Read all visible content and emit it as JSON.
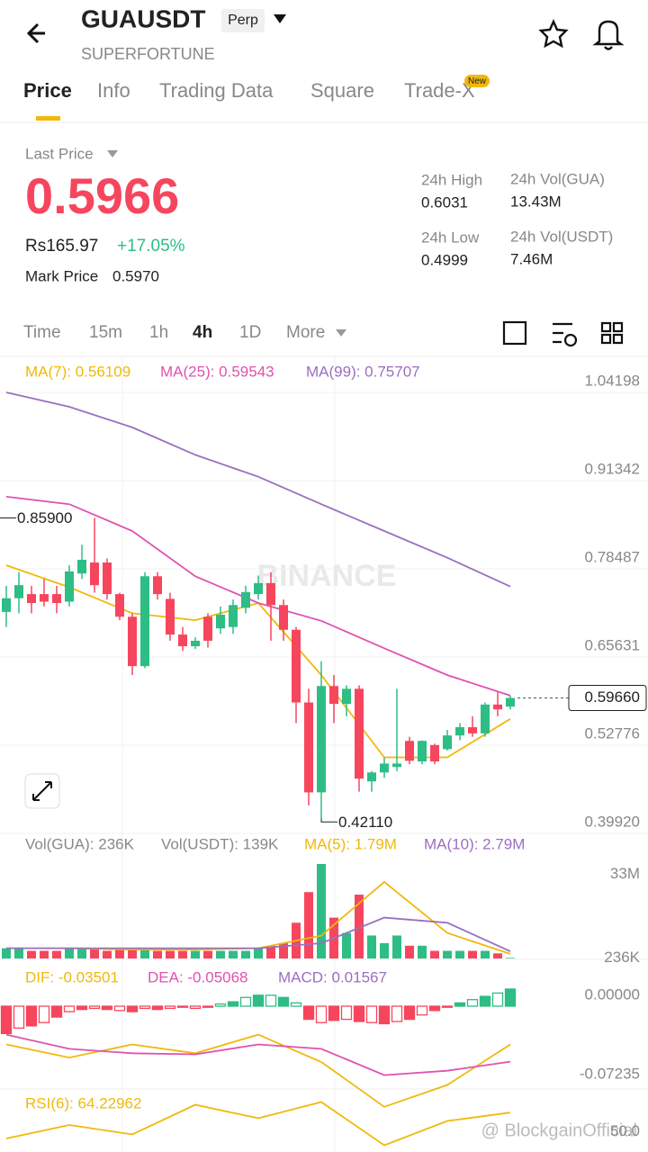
{
  "header": {
    "symbol": "GUAUSDT",
    "badge": "Perp",
    "subtitle": "SUPERFORTUNE"
  },
  "tabs": [
    "Price",
    "Info",
    "Trading Data",
    "Square",
    "Trade-X"
  ],
  "tab_badge": "New",
  "price": {
    "label": "Last Price",
    "last": "0.5966",
    "fiat": "Rs165.97",
    "change": "+17.05%",
    "mark_label": "Mark Price",
    "mark": "0.5970"
  },
  "stats": [
    {
      "label": "24h High",
      "value": "0.6031"
    },
    {
      "label": "24h Vol(GUA)",
      "value": "13.43M"
    },
    {
      "label": "24h Low",
      "value": "0.4999"
    },
    {
      "label": "24h Vol(USDT)",
      "value": "7.46M"
    }
  ],
  "intervals": [
    "Time",
    "15m",
    "1h",
    "4h",
    "1D",
    "More"
  ],
  "chart": {
    "type": "candlestick",
    "watermark": "BINANCE",
    "legend": [
      "MA(7): 0.56109",
      "MA(25): 0.59543",
      "MA(99): 0.75707"
    ],
    "ylim": [
      0.3992,
      1.04198
    ],
    "yticks": [
      1.04198,
      0.91342,
      0.78487,
      0.65631,
      0.52776,
      {
        "value": 0.3992,
        "label": "0.39920"
      }
    ],
    "last_price": {
      "value": 0.5966,
      "label": "0.59660"
    },
    "high_mark": {
      "value": 0.859,
      "label": "0.85900"
    },
    "low_mark": {
      "value": 0.4211,
      "label": "0.42110"
    },
    "candles": [
      [
        0.722,
        0.76,
        0.7,
        0.742
      ],
      [
        0.742,
        0.78,
        0.72,
        0.761
      ],
      [
        0.748,
        0.76,
        0.72,
        0.735
      ],
      [
        0.748,
        0.77,
        0.73,
        0.737
      ],
      [
        0.748,
        0.76,
        0.72,
        0.735
      ],
      [
        0.737,
        0.79,
        0.73,
        0.781
      ],
      [
        0.778,
        0.82,
        0.77,
        0.798
      ],
      [
        0.794,
        0.859,
        0.75,
        0.761
      ],
      [
        0.794,
        0.8,
        0.74,
        0.748
      ],
      [
        0.748,
        0.75,
        0.71,
        0.715
      ],
      [
        0.715,
        0.72,
        0.63,
        0.643
      ],
      [
        0.643,
        0.78,
        0.64,
        0.774
      ],
      [
        0.774,
        0.78,
        0.74,
        0.748
      ],
      [
        0.741,
        0.75,
        0.68,
        0.689
      ],
      [
        0.689,
        0.7,
        0.665,
        0.672
      ],
      [
        0.672,
        0.685,
        0.668,
        0.68
      ],
      [
        0.715,
        0.72,
        0.67,
        0.68
      ],
      [
        0.698,
        0.73,
        0.69,
        0.718
      ],
      [
        0.7,
        0.74,
        0.69,
        0.732
      ],
      [
        0.728,
        0.76,
        0.72,
        0.751
      ],
      [
        0.748,
        0.775,
        0.74,
        0.764
      ],
      [
        0.764,
        0.78,
        0.68,
        0.732
      ],
      [
        0.732,
        0.74,
        0.68,
        0.696
      ],
      [
        0.696,
        0.7,
        0.56,
        0.59
      ],
      [
        0.59,
        0.61,
        0.44,
        0.459
      ],
      [
        0.459,
        0.65,
        0.4211,
        0.614
      ],
      [
        0.614,
        0.63,
        0.56,
        0.588
      ],
      [
        0.588,
        0.615,
        0.57,
        0.61
      ],
      [
        0.61,
        0.615,
        0.46,
        0.479
      ],
      [
        0.475,
        0.49,
        0.46,
        0.488
      ],
      [
        0.488,
        0.51,
        0.48,
        0.501
      ],
      [
        0.496,
        0.61,
        0.49,
        0.501
      ],
      [
        0.534,
        0.54,
        0.5,
        0.505
      ],
      [
        0.504,
        0.535,
        0.5,
        0.534
      ],
      [
        0.528,
        0.53,
        0.5,
        0.504
      ],
      [
        0.522,
        0.55,
        0.52,
        0.542
      ],
      [
        0.542,
        0.56,
        0.535,
        0.554
      ],
      [
        0.554,
        0.57,
        0.54,
        0.545
      ],
      [
        0.545,
        0.59,
        0.54,
        0.587
      ],
      [
        0.587,
        0.605,
        0.57,
        0.58
      ],
      [
        0.584,
        0.6,
        0.58,
        0.5966
      ]
    ],
    "ma": [
      {
        "name": "MA(7)",
        "color": "#f0b90b",
        "values": [
          0.79,
          0.758,
          0.72,
          0.71,
          0.735,
          0.63,
          0.51,
          0.51,
          0.566
        ]
      },
      {
        "name": "MA(25)",
        "color": "#e052b0",
        "values": [
          0.89,
          0.879,
          0.84,
          0.774,
          0.735,
          0.709,
          0.669,
          0.63,
          0.6
        ]
      },
      {
        "name": "MA(99)",
        "color": "#9b6fc0",
        "values": [
          1.042,
          1.021,
          0.991,
          0.951,
          0.919,
          0.879,
          0.84,
          0.801,
          0.759
        ]
      }
    ]
  },
  "volume": {
    "legend": [
      "Vol(GUA): 236K",
      "Vol(USDT): 139K",
      "MA(5): 1.79M",
      "MA(10): 2.79M"
    ],
    "ylim": [
      0,
      37
    ],
    "yticks": [
      {
        "value": 33,
        "label": "33M"
      },
      {
        "value": 0.236,
        "label": "236K"
      }
    ],
    "values": [
      4,
      4,
      3,
      3,
      3,
      4,
      4,
      4,
      3,
      4,
      4,
      4,
      3,
      3,
      3,
      3,
      3,
      3,
      3,
      3,
      4,
      5,
      6,
      14,
      26,
      37,
      16,
      10,
      25,
      9,
      6,
      9,
      5,
      5,
      3,
      3,
      3,
      3,
      3,
      2,
      0.236
    ],
    "ma": [
      {
        "name": "MA(5)",
        "color": "#f0b90b",
        "values": [
          4,
          4,
          3.5,
          3.5,
          4,
          9,
          30,
          10,
          1.79
        ]
      },
      {
        "name": "MA(10)",
        "color": "#9b6fc0",
        "values": [
          4,
          4,
          4,
          4,
          4,
          6,
          16,
          14,
          2.79
        ]
      }
    ]
  },
  "macd": {
    "legend": [
      "DIF: -0.03501",
      "DEA: -0.05068",
      "MACD: 0.01567"
    ],
    "ylim": [
      -0.0905,
      0.0329
    ],
    "yticks": [
      {
        "value": 0,
        "label": "0.00000"
      },
      -0.07235
    ],
    "values": [
      -0.025,
      -0.02,
      -0.018,
      -0.015,
      -0.01,
      -0.005,
      -0.003,
      -0.002,
      -0.003,
      -0.004,
      -0.005,
      -0.002,
      -0.003,
      -0.002,
      -0.001,
      -0.002,
      -0.001,
      0.002,
      0.004,
      0.008,
      0.01,
      0.01,
      0.008,
      0.003,
      -0.012,
      -0.015,
      -0.013,
      -0.012,
      -0.014,
      -0.015,
      -0.016,
      -0.014,
      -0.012,
      -0.008,
      -0.004,
      -0.001,
      0.003,
      0.006,
      0.009,
      0.012,
      0.01567
    ],
    "lines": [
      {
        "name": "DIF",
        "color": "#f0b90b",
        "values": [
          -0.035,
          -0.047,
          -0.035,
          -0.043,
          -0.026,
          -0.051,
          -0.092,
          -0.072,
          -0.03501
        ]
      },
      {
        "name": "DEA",
        "color": "#e052b0",
        "values": [
          -0.026,
          -0.039,
          -0.043,
          -0.044,
          -0.035,
          -0.039,
          -0.063,
          -0.059,
          -0.05068
        ]
      }
    ]
  },
  "rsi": {
    "legend": [
      "RSI(6): 64.22962"
    ],
    "ylim": [
      35,
      65
    ],
    "yticks": [
      {
        "value": 50,
        "label": "50.0"
      }
    ],
    "values": [
      45,
      55,
      48,
      70,
      60,
      72,
      40,
      58,
      64.22962
    ],
    "color": "#f0b90b"
  },
  "credit": "@ BlockgainOfficial"
}
